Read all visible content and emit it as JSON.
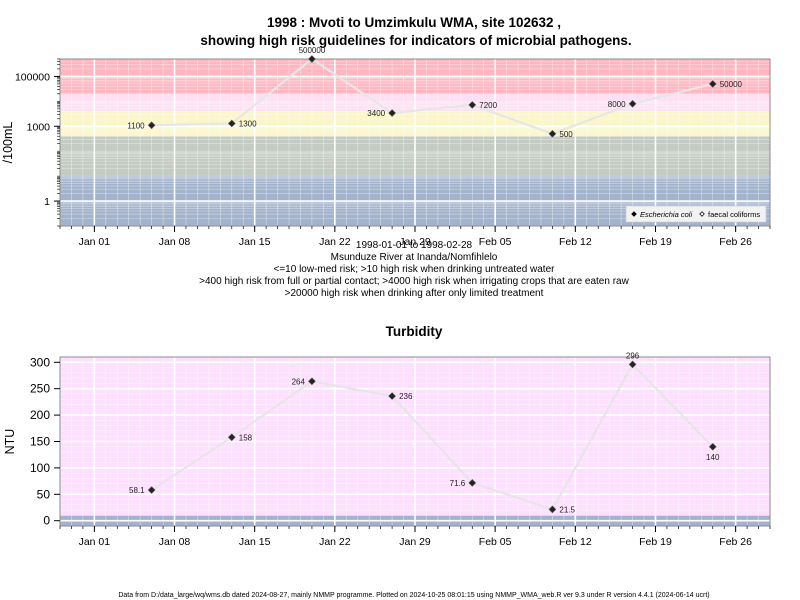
{
  "figure": {
    "title_line1": "1998 : Mvoti to Umzimkulu WMA, site 102632 ,",
    "title_line2": "showing high risk guidelines for indicators of microbial pathogens.",
    "footer": "Data from D:/data_large/wq/wms.db dated 2024-08-27, mainly NMMP programme. Plotted on 2024-10-25 08:01:15 using NMMP_WMA_web.R ver 9.3 under R version 4.4.1 (2024-06-14 ucrt)",
    "caption_lines": [
      "1998-01-01 to 1998-02-28",
      "Msunduze River at Inanda/Nomfihlelo",
      "<=10 low-med risk; >10 high risk when drinking untreated water",
      ">400 high risk from full or partial contact; >4000 high risk when irrigating crops that are eaten raw",
      ">20000 high risk when drinking after only limited treatment"
    ]
  },
  "chart_data": [
    {
      "type": "line",
      "subtitle": "",
      "xlabel": "",
      "ylabel": "/100mL",
      "y_scale": "log10",
      "ylim": [
        0.1,
        500000
      ],
      "xlim": [
        "1997-12-29",
        "1998-03-01"
      ],
      "x_ticks": [
        "Jan 01",
        "Jan 08",
        "Jan 15",
        "Jan 22",
        "Jan 29",
        "Feb 05",
        "Feb 12",
        "Feb 19",
        "Feb 26"
      ],
      "x_tick_dates": [
        "1998-01-01",
        "1998-01-08",
        "1998-01-15",
        "1998-01-22",
        "1998-01-29",
        "1998-02-05",
        "1998-02-12",
        "1998-02-19",
        "1998-02-26"
      ],
      "y_ticks": [
        1,
        1000,
        100000
      ],
      "y_tick_labels": [
        "1",
        "1000",
        "100000"
      ],
      "grid": true,
      "risk_bands": [
        {
          "from": 0.1,
          "to": 10,
          "color": "#a3b3cc"
        },
        {
          "from": 10,
          "to": 400,
          "color": "#c3cbc3"
        },
        {
          "from": 400,
          "to": 4000,
          "color": "#fbf6c8"
        },
        {
          "from": 4000,
          "to": 20000,
          "color": "#fde0f3"
        },
        {
          "from": 20000,
          "to": 500000,
          "color": "#ffb6c1"
        }
      ],
      "legend_position": "bottom-right",
      "legend": [
        {
          "label": "Escherichia coli",
          "marker": "filled-diamond",
          "italic": true
        },
        {
          "label": "faecal coliforms",
          "marker": "open-diamond",
          "italic": false
        }
      ],
      "series": [
        {
          "name": "Escherichia coli",
          "x": [
            "1998-01-06",
            "1998-01-13",
            "1998-01-20",
            "1998-01-27",
            "1998-02-03",
            "1998-02-10",
            "1998-02-17",
            "1998-02-24"
          ],
          "values": [
            1100,
            1300,
            500000,
            3400,
            7200,
            500,
            8000,
            50000
          ],
          "labels": [
            "1100",
            "1300",
            "500000",
            "3400",
            "7200",
            "500",
            "8000",
            "50000"
          ],
          "label_side": [
            "left",
            "right",
            "above",
            "left",
            "right",
            "right",
            "left",
            "right"
          ]
        }
      ]
    },
    {
      "type": "line",
      "title": "Turbidity",
      "xlabel": "",
      "ylabel": "NTU",
      "ylim": [
        -10,
        310
      ],
      "xlim": [
        "1997-12-29",
        "1998-03-01"
      ],
      "x_ticks": [
        "Jan 01",
        "Jan 08",
        "Jan 15",
        "Jan 22",
        "Jan 29",
        "Feb 05",
        "Feb 12",
        "Feb 19",
        "Feb 26"
      ],
      "x_tick_dates": [
        "1998-01-01",
        "1998-01-08",
        "1998-01-15",
        "1998-01-22",
        "1998-01-29",
        "1998-02-05",
        "1998-02-12",
        "1998-02-19",
        "1998-02-26"
      ],
      "y_ticks": [
        0,
        50,
        100,
        150,
        200,
        250,
        300
      ],
      "grid": true,
      "bands": [
        {
          "from": -10,
          "to": 10,
          "color": "#a3b3cc"
        },
        {
          "from": 10,
          "to": 310,
          "color": "#fde0fe"
        }
      ],
      "series": [
        {
          "name": "",
          "x": [
            "1998-01-06",
            "1998-01-13",
            "1998-01-20",
            "1998-01-27",
            "1998-02-03",
            "1998-02-10",
            "1998-02-17",
            "1998-02-24"
          ],
          "values": [
            58.1,
            158,
            264,
            236,
            71.6,
            21.5,
            296,
            140
          ],
          "labels": [
            "58.1",
            "158",
            "264",
            "236",
            "71.6",
            "21.5",
            "296",
            "140"
          ],
          "label_side": [
            "left",
            "right",
            "left",
            "right",
            "left",
            "right",
            "above",
            "below"
          ]
        }
      ]
    }
  ]
}
